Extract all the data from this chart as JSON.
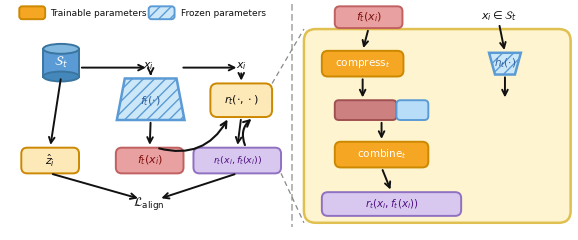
{
  "bg_color": "#ffffff",
  "legend_trainable_color": "#f5a623",
  "legend_frozen_color": "#cce8f8",
  "legend_frozen_edge": "#5b9bd5",
  "box_orange_fill": "#f5a623",
  "box_orange_edge": "#cc8800",
  "box_light_orange_fill": "#fde8b8",
  "box_light_orange_edge": "#cc8800",
  "box_pink_fill": "#e8a0a0",
  "box_pink_edge": "#c06060",
  "box_purple_fill": "#d8c8f0",
  "box_purple_edge": "#9070c0",
  "box_blue_fill": "#b8ddf8",
  "box_blue_edge": "#5b9bd5",
  "box_yellow_bg": "#fef5d0",
  "box_yellow_edge": "#e0c050",
  "db_body_color": "#5b9bd5",
  "db_top_color": "#80b8e0",
  "db_bot_color": "#4488bb",
  "db_edge": "#3a75a0",
  "text_color": "#111111",
  "divider_color": "#aaaaaa",
  "arrow_color": "#111111",
  "dashed_color": "#888888"
}
